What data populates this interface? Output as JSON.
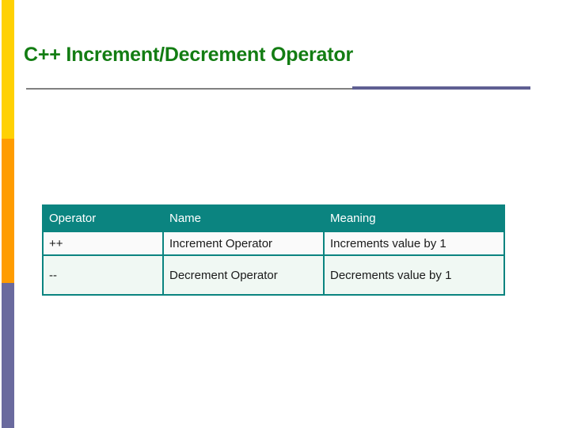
{
  "slide": {
    "title": "C++ Increment/Decrement Operator",
    "colors": {
      "title_green": "#137d13",
      "accent_bar_yellow": "#ffd103",
      "accent_bar_orange": "#ff9c00",
      "accent_bar_purple": "#6a6a9e",
      "rule_gray": "#808080",
      "rule_purple": "#5f5f92",
      "table_header_teal": "#0b8480",
      "table_row1_bg": "#fafafa",
      "table_row2_bg": "#f0f8f3",
      "cell_text": "#1a1a1a"
    },
    "table": {
      "headers": [
        "Operator",
        "Name",
        "Meaning"
      ],
      "rows": [
        [
          "++",
          "Increment Operator",
          "Increments value by 1"
        ],
        [
          "--",
          "Decrement Operator",
          "Decrements value by 1"
        ]
      ]
    }
  }
}
